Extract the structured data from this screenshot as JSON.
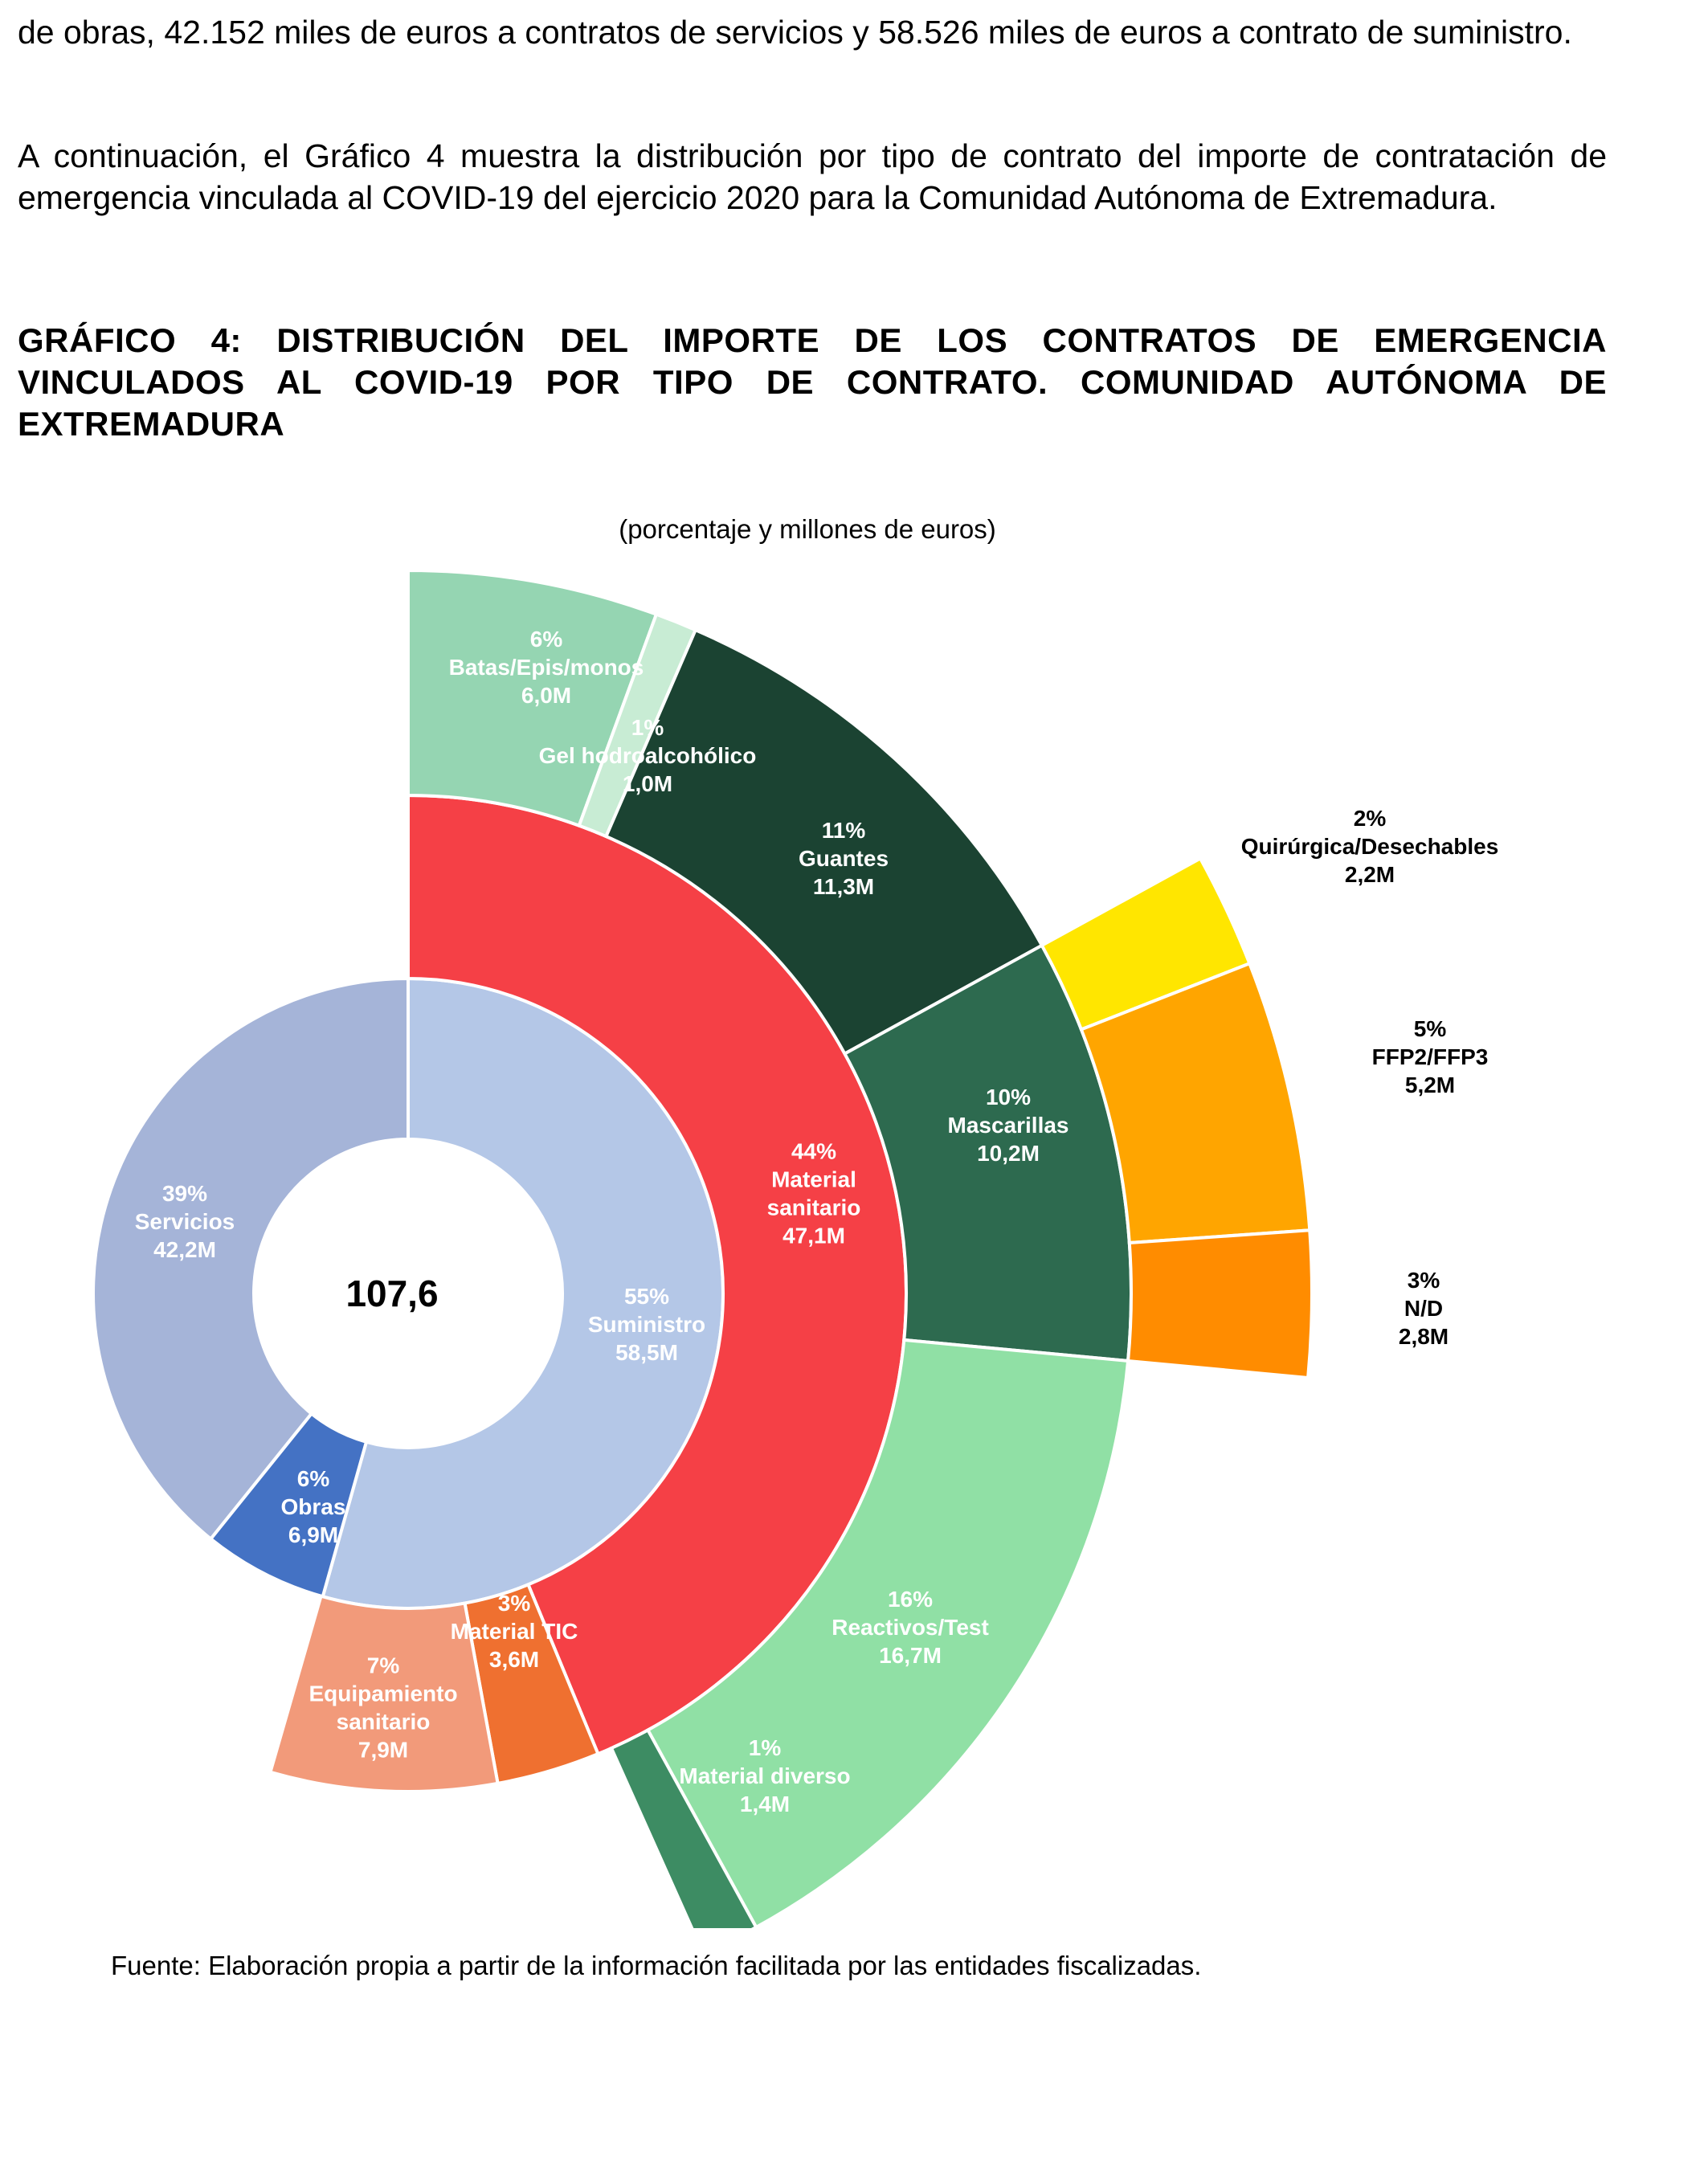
{
  "document": {
    "paragraph_1": "de obras, 42.152 miles de euros a contratos de servicios y 58.526 miles de euros a contrato de suministro.",
    "paragraph_2": "A continuación, el Gráfico 4 muestra la distribución por tipo de contrato del importe de contratación de emergencia vinculada al COVID-19 del ejercicio 2020 para la Comunidad Autónoma de Extremadura.",
    "figure_title": "GRÁFICO 4: DISTRIBUCIÓN DEL IMPORTE DE LOS CONTRATOS DE EMERGENCIA VINCULADOS AL COVID-19 POR TIPO DE CONTRATO. COMUNIDAD AUTÓNOMA DE EXTREMADURA",
    "figure_subtitle": "(porcentaje y millones de euros)",
    "source": "Fuente: Elaboración propia a partir de la información facilitada por las entidades fiscalizadas."
  },
  "chart_data": {
    "type": "sunburst",
    "title": "GRÁFICO 4: DISTRIBUCIÓN DEL IMPORTE DE LOS CONTRATOS DE EMERGENCIA VINCULADOS AL COVID-19 POR TIPO DE CONTRATO. COMUNIDAD AUTÓNOMA DE EXTREMADURA",
    "subtitle": "(porcentaje y millones de euros)",
    "unit": "millones de euros",
    "center_total": "107,6",
    "total": 107.6,
    "rings": [
      {
        "level": 1,
        "segments": [
          {
            "key": "suministro",
            "pct": "55%",
            "name": "Suministro",
            "amount": "58,5M",
            "value": 58.5,
            "color": "#b4c7e7"
          },
          {
            "key": "obras",
            "pct": "6%",
            "name": "Obras",
            "amount": "6,9M",
            "value": 6.9,
            "color": "#4472c4"
          },
          {
            "key": "servicios",
            "pct": "39%",
            "name": "Servicios",
            "amount": "42,2M",
            "value": 42.2,
            "color": "#a5b4d8"
          }
        ]
      },
      {
        "level": 2,
        "segments": [
          {
            "key": "material_sanitario",
            "parent": "suministro",
            "pct": "44%",
            "name": "Material sanitario",
            "amount": "47,1M",
            "value": 47.1,
            "color": "#f54046"
          },
          {
            "key": "material_tic",
            "parent": "suministro",
            "pct": "3%",
            "name": "Material TIC",
            "amount": "3,6M",
            "value": 3.6,
            "color": "#ef7030"
          },
          {
            "key": "equipamiento_sanitario",
            "parent": "suministro",
            "pct": "7%",
            "name": "Equipamiento sanitario",
            "amount": "7,9M",
            "value": 7.9,
            "color": "#f29a7a"
          }
        ]
      },
      {
        "level": 3,
        "segments": [
          {
            "key": "batas",
            "parent": "material_sanitario",
            "pct": "6%",
            "name": "Batas/Epis/monos",
            "amount": "6,0M",
            "value": 6.0,
            "color": "#95d5b2"
          },
          {
            "key": "gel",
            "parent": "material_sanitario",
            "pct": "1%",
            "name": "Gel hodroalcohólico",
            "amount": "1,0M",
            "value": 1.0,
            "color": "#c8ecd4"
          },
          {
            "key": "guantes",
            "parent": "material_sanitario",
            "pct": "11%",
            "name": "Guantes",
            "amount": "11,3M",
            "value": 11.3,
            "color": "#1b4332"
          },
          {
            "key": "mascarillas",
            "parent": "material_sanitario",
            "pct": "10%",
            "name": "Mascarillas",
            "amount": "10,2M",
            "value": 10.2,
            "color": "#2d6a4f"
          },
          {
            "key": "reactivos",
            "parent": "material_sanitario",
            "pct": "16%",
            "name": "Reactivos/Test",
            "amount": "16,7M",
            "value": 16.7,
            "color": "#90e0a5"
          },
          {
            "key": "material_diverso",
            "parent": "material_sanitario",
            "pct": "1%",
            "name": "Material diverso",
            "amount": "1,4M",
            "value": 1.4,
            "color": "#3d8c63"
          }
        ]
      },
      {
        "level": 4,
        "segments": [
          {
            "key": "quirurgica",
            "parent": "mascarillas",
            "pct": "2%",
            "name": "Quirúrgica/Desechables",
            "amount": "2,2M",
            "value": 2.2,
            "color": "#ffe600"
          },
          {
            "key": "ffp",
            "parent": "mascarillas",
            "pct": "5%",
            "name": "FFP2/FFP3",
            "amount": "5,2M",
            "value": 5.2,
            "color": "#ffa500"
          },
          {
            "key": "nd",
            "parent": "mascarillas",
            "pct": "3%",
            "name": "N/D",
            "amount": "2,8M",
            "value": 2.8,
            "color": "#ff8c00"
          }
        ]
      }
    ]
  }
}
